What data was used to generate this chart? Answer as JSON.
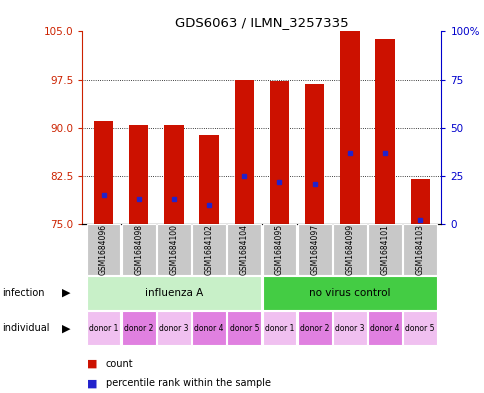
{
  "title": "GDS6063 / ILMN_3257335",
  "samples": [
    "GSM1684096",
    "GSM1684098",
    "GSM1684100",
    "GSM1684102",
    "GSM1684104",
    "GSM1684095",
    "GSM1684097",
    "GSM1684099",
    "GSM1684101",
    "GSM1684103"
  ],
  "count_values": [
    91.0,
    90.5,
    90.5,
    88.8,
    97.5,
    97.3,
    96.8,
    105.0,
    103.8,
    82.0
  ],
  "percentile_values": [
    15,
    13,
    13,
    10,
    25,
    22,
    21,
    37,
    37,
    2
  ],
  "ylim_left": [
    75,
    105
  ],
  "ylim_right": [
    0,
    100
  ],
  "yticks_left": [
    75,
    82.5,
    90,
    97.5,
    105
  ],
  "yticks_right": [
    0,
    25,
    50,
    75,
    100
  ],
  "infection_groups": [
    {
      "label": "influenza A",
      "start": 0,
      "end": 5,
      "color": "#c8f0c8"
    },
    {
      "label": "no virus control",
      "start": 5,
      "end": 10,
      "color": "#44cc44"
    }
  ],
  "individual_labels": [
    "donor 1",
    "donor 2",
    "donor 3",
    "donor 4",
    "donor 5",
    "donor 1",
    "donor 2",
    "donor 3",
    "donor 4",
    "donor 5"
  ],
  "individual_colors": [
    "#f0c0f0",
    "#e080e0",
    "#f0c0f0",
    "#e080e0",
    "#e080e0",
    "#f0c0f0",
    "#e080e0",
    "#f0c0f0",
    "#e080e0",
    "#f0c0f0"
  ],
  "bar_color": "#cc1100",
  "blue_color": "#2222cc",
  "bar_width": 0.55,
  "background_color": "#ffffff",
  "left_axis_color": "#cc2200",
  "right_axis_color": "#0000cc",
  "sample_box_color": "#c8c8c8"
}
